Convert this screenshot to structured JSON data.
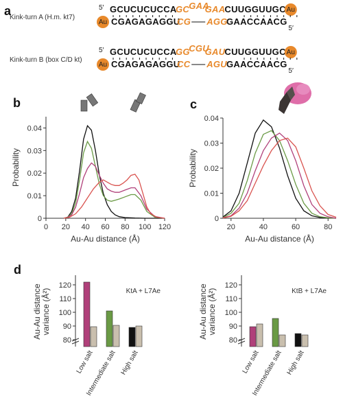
{
  "panel_a": {
    "letter": "a",
    "kta": {
      "name": "Kink-turn A (H.m. kt7)",
      "top": [
        {
          "t": "GCUCUCUCCA",
          "c": "#111111",
          "i": false
        },
        {
          "t": "GC",
          "c": "#e8892b",
          "i": true
        },
        {
          "t": "GAA",
          "c": "#e8892b",
          "i": true,
          "sup": true
        },
        {
          "t": "GAA",
          "c": "#e8892b",
          "i": true
        },
        {
          "t": "CUUGGUUGC",
          "c": "#111111",
          "i": false
        }
      ],
      "bottom": [
        {
          "t": "CGAGAGAGGU",
          "c": "#111111",
          "i": false
        },
        {
          "t": "CG",
          "c": "#e8892b",
          "i": true
        },
        {
          "t": "AGG",
          "c": "#e8892b",
          "i": true
        },
        {
          "t": "GAACCAACG",
          "c": "#111111",
          "i": false
        }
      ]
    },
    "ktb": {
      "name": "Kink-turn B (box C/D kt)",
      "top": [
        {
          "t": "GCUCUCUCCA",
          "c": "#111111",
          "i": false
        },
        {
          "t": "GG",
          "c": "#e8892b",
          "i": true
        },
        {
          "t": "CGU",
          "c": "#e8892b",
          "i": true,
          "sup": true
        },
        {
          "t": "GAU",
          "c": "#e8892b",
          "i": true
        },
        {
          "t": "CUUGGUUGC",
          "c": "#111111",
          "i": false
        }
      ],
      "bottom": [
        {
          "t": "CGAGAGAGGU",
          "c": "#111111",
          "i": false
        },
        {
          "t": "CC",
          "c": "#e8892b",
          "i": true
        },
        {
          "t": "AGU",
          "c": "#e8892b",
          "i": true
        },
        {
          "t": "GAACCAACG",
          "c": "#111111",
          "i": false
        }
      ]
    },
    "prime5": "5′",
    "gold_label": "Au"
  },
  "colors": {
    "gold": "#e8892b",
    "black": "#111111",
    "magenta": "#b0407a",
    "green": "#6a9a45",
    "tan": "#c9bfae",
    "red": "#d9534f",
    "orange": "#e8892b"
  },
  "chart_data": [
    {
      "id": "b",
      "letter": "b",
      "type": "line",
      "xlabel": "Au-Au distance (Å)",
      "ylabel": "Probability",
      "xlim": [
        0,
        120
      ],
      "ylim": [
        0,
        0.045
      ],
      "xticks": [
        0,
        20,
        40,
        60,
        80,
        100,
        120
      ],
      "yticks": [
        0,
        0.01,
        0.02,
        0.03,
        0.04
      ],
      "ytick_labels": [
        "0",
        "0.01",
        "0.02",
        "0.03",
        "0.04"
      ],
      "icons": [
        "kinked-duplex-icon",
        "straight-duplex-icon"
      ],
      "series": [
        {
          "color": "#111111",
          "x": [
            18,
            22,
            26,
            30,
            34,
            38,
            42,
            46,
            50,
            54,
            58,
            62,
            66,
            70,
            74,
            80,
            90,
            100,
            110,
            120
          ],
          "y": [
            0,
            0.0005,
            0.003,
            0.009,
            0.021,
            0.035,
            0.041,
            0.039,
            0.03,
            0.019,
            0.011,
            0.006,
            0.003,
            0.0015,
            0.0007,
            0.0003,
            0.0001,
            0,
            0,
            0
          ]
        },
        {
          "color": "#6a9a45",
          "x": [
            18,
            22,
            26,
            30,
            34,
            38,
            42,
            46,
            50,
            54,
            58,
            62,
            66,
            70,
            74,
            80,
            86,
            90,
            96,
            102,
            110,
            120
          ],
          "y": [
            0,
            0.0005,
            0.002,
            0.007,
            0.017,
            0.029,
            0.034,
            0.031,
            0.023,
            0.015,
            0.01,
            0.008,
            0.0075,
            0.008,
            0.0085,
            0.0095,
            0.0105,
            0.0105,
            0.008,
            0.003,
            0.0005,
            0
          ]
        },
        {
          "color": "#b0407a",
          "x": [
            18,
            22,
            26,
            30,
            34,
            38,
            42,
            46,
            50,
            54,
            58,
            62,
            66,
            70,
            74,
            80,
            86,
            90,
            96,
            102,
            110,
            120
          ],
          "y": [
            0,
            0.0004,
            0.0015,
            0.005,
            0.011,
            0.018,
            0.022,
            0.0245,
            0.023,
            0.019,
            0.0155,
            0.013,
            0.012,
            0.0115,
            0.0115,
            0.0125,
            0.0135,
            0.0135,
            0.01,
            0.004,
            0.0008,
            0
          ]
        },
        {
          "color": "#d9534f",
          "x": [
            18,
            24,
            30,
            36,
            42,
            48,
            54,
            58,
            62,
            66,
            70,
            74,
            78,
            82,
            86,
            90,
            94,
            98,
            102,
            106,
            112,
            120
          ],
          "y": [
            0,
            0.0005,
            0.002,
            0.005,
            0.009,
            0.013,
            0.016,
            0.017,
            0.016,
            0.015,
            0.0145,
            0.0145,
            0.0155,
            0.017,
            0.019,
            0.0195,
            0.017,
            0.011,
            0.005,
            0.002,
            0.0005,
            0
          ]
        }
      ]
    },
    {
      "id": "c",
      "letter": "c",
      "type": "line",
      "xlabel": "Au-Au distance (Å)",
      "ylabel": "Probability",
      "xlim": [
        15,
        85
      ],
      "ylim": [
        0,
        0.04
      ],
      "xticks": [
        20,
        40,
        60,
        80
      ],
      "yticks": [
        0,
        0.01,
        0.02,
        0.03,
        0.04
      ],
      "ytick_labels": [
        "0",
        "0.01",
        "0.02",
        "0.03",
        "0.04"
      ],
      "series": [
        {
          "color": "#111111",
          "x": [
            15,
            20,
            25,
            30,
            35,
            40,
            45,
            50,
            55,
            60,
            65,
            70,
            75,
            80,
            85
          ],
          "y": [
            0.0005,
            0.003,
            0.01,
            0.022,
            0.034,
            0.0392,
            0.0365,
            0.028,
            0.017,
            0.008,
            0.003,
            0.001,
            0.0003,
            0.0001,
            0
          ]
        },
        {
          "color": "#6a9a45",
          "x": [
            15,
            20,
            25,
            30,
            35,
            40,
            45,
            50,
            55,
            60,
            65,
            70,
            75,
            80,
            85
          ],
          "y": [
            0.0003,
            0.002,
            0.006,
            0.015,
            0.026,
            0.0335,
            0.035,
            0.031,
            0.023,
            0.0135,
            0.006,
            0.002,
            0.0006,
            0.0002,
            0
          ]
        },
        {
          "color": "#b0407a",
          "x": [
            15,
            20,
            25,
            30,
            35,
            40,
            45,
            50,
            55,
            60,
            65,
            70,
            75,
            80,
            85
          ],
          "y": [
            0.0002,
            0.001,
            0.004,
            0.01,
            0.019,
            0.027,
            0.032,
            0.034,
            0.031,
            0.023,
            0.013,
            0.0055,
            0.002,
            0.0006,
            0
          ]
        },
        {
          "color": "#d9534f",
          "x": [
            15,
            20,
            25,
            30,
            35,
            40,
            45,
            50,
            55,
            60,
            65,
            70,
            75,
            80,
            85
          ],
          "y": [
            0.0001,
            0.0008,
            0.003,
            0.007,
            0.014,
            0.021,
            0.027,
            0.031,
            0.032,
            0.0285,
            0.02,
            0.011,
            0.005,
            0.0015,
            0.0004
          ]
        }
      ]
    },
    {
      "id": "d1",
      "letter": "d",
      "type": "bar",
      "title": "KtA + L7Ae",
      "ylabel_lines": [
        "Au-Au distance",
        "variance (Å²)"
      ],
      "ylim": [
        80,
        125
      ],
      "yticks": [
        80,
        90,
        100,
        110,
        120
      ],
      "categories": [
        "Low salt",
        "Intermediate salt",
        "High salt"
      ],
      "category_colors": [
        "#b0407a",
        "#6a9a45",
        "#111111"
      ],
      "values": [
        [
          122,
          89.5
        ],
        [
          101,
          90.5
        ],
        [
          89,
          90
        ]
      ],
      "pair_colors": [
        "category",
        "#c9bfae"
      ]
    },
    {
      "id": "d2",
      "type": "bar",
      "title": "KtB + L7Ae",
      "ylabel_lines": [
        "Au-Au distance",
        "variance (Å²)"
      ],
      "ylim": [
        80,
        125
      ],
      "yticks": [
        80,
        90,
        100,
        110,
        120
      ],
      "categories": [
        "Low salt",
        "Intermediate salt",
        "High salt"
      ],
      "category_colors": [
        "#b0407a",
        "#6a9a45",
        "#111111"
      ],
      "values": [
        [
          89.5,
          91.5
        ],
        [
          95.5,
          83.5
        ],
        [
          84.5,
          83.5
        ]
      ],
      "pair_colors": [
        "category",
        "#c9bfae"
      ]
    }
  ]
}
